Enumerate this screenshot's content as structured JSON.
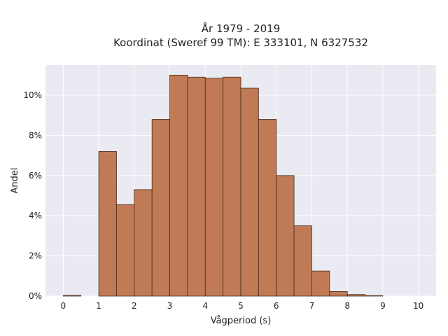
{
  "chart_data": {
    "type": "bar",
    "title_line1": "År 1979 - 2019",
    "title_line2": "Koordinat (Sweref 99 TM): E 333101, N 6327532",
    "xlabel": "Vågperiod (s)",
    "ylabel": "Andel",
    "x_ticks": [
      "0",
      "1",
      "2",
      "3",
      "4",
      "5",
      "6",
      "7",
      "8",
      "9",
      "10"
    ],
    "y_ticks": [
      "0%",
      "2%",
      "4%",
      "6%",
      "8%",
      "10%"
    ],
    "xlim": [
      -0.5,
      10.5
    ],
    "ylim": [
      0,
      0.115
    ],
    "bin_width": 0.5,
    "bins": [
      {
        "start": 0.0,
        "value": 0.0003
      },
      {
        "start": 0.5,
        "value": 0.0
      },
      {
        "start": 1.0,
        "value": 0.072
      },
      {
        "start": 1.5,
        "value": 0.0455
      },
      {
        "start": 2.0,
        "value": 0.053
      },
      {
        "start": 2.5,
        "value": 0.088
      },
      {
        "start": 3.0,
        "value": 0.11
      },
      {
        "start": 3.5,
        "value": 0.109
      },
      {
        "start": 4.0,
        "value": 0.1085
      },
      {
        "start": 4.5,
        "value": 0.109
      },
      {
        "start": 5.0,
        "value": 0.1035
      },
      {
        "start": 5.5,
        "value": 0.088
      },
      {
        "start": 6.0,
        "value": 0.06
      },
      {
        "start": 6.5,
        "value": 0.035
      },
      {
        "start": 7.0,
        "value": 0.0125
      },
      {
        "start": 7.5,
        "value": 0.0023
      },
      {
        "start": 8.0,
        "value": 0.0008
      },
      {
        "start": 8.5,
        "value": 0.0002
      },
      {
        "start": 9.0,
        "value": 0.0
      },
      {
        "start": 9.5,
        "value": 0.0
      }
    ],
    "grid": true,
    "colors": {
      "bar_fill": "#c07b56",
      "bar_edge": "#4a2a18",
      "plot_bg": "#eaeaf2",
      "grid": "#ffffff"
    }
  }
}
